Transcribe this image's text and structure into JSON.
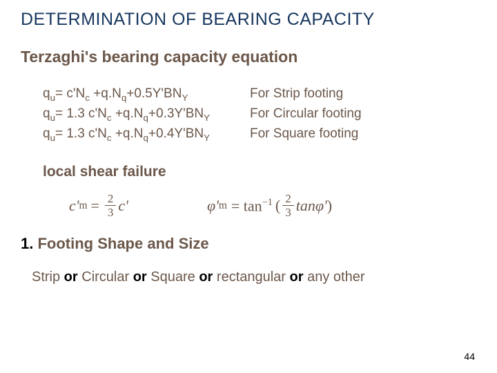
{
  "colors": {
    "title": "#16365e",
    "brown": "#6b574a",
    "black": "#000000",
    "background": "#ffffff"
  },
  "fonts": {
    "body_size_pt": 19,
    "heading_size_pt": 23,
    "title_size_pt": 25
  },
  "title": "DETERMINATION OF BEARING CAPACITY",
  "heading1": "Terzaghi's bearing capacity equation",
  "equations": [
    {
      "lhs": "qu= c'Nc +q.Nq+0.5Y'BNY",
      "rhs": "For Strip footing"
    },
    {
      "lhs": "qu= 1.3 c'Nc +q.Nq+0.3Y'BNY",
      "rhs": "For Circular footing"
    },
    {
      "lhs": "qu= 1.3 c'Nc +q.Nq+0.4Y'BNY",
      "rhs": "For Square footing"
    }
  ],
  "sub_heading": "local shear failure",
  "formula1": {
    "sym": "c'",
    "sub": "m",
    "eq": "=",
    "frac_num": "2",
    "frac_den": "3",
    "tail": "c'"
  },
  "formula2": {
    "sym": "φ'",
    "sub": "m",
    "eq": "= tan",
    "sup": "−1",
    "open": "(",
    "frac_num": "2",
    "frac_den": "3",
    "mid": "tanφ'",
    "close": ")"
  },
  "section_num_prefix": "1. ",
  "section_num_rest": "Footing Shape and Size",
  "shapes": {
    "w1": "Strip",
    "or1": " or ",
    "w2": "Circular",
    "or2": " or ",
    "w3": "Square",
    "or3": " or ",
    "w4": "rectangular",
    "or4": " or ",
    "w5": "any other"
  },
  "page": "44"
}
